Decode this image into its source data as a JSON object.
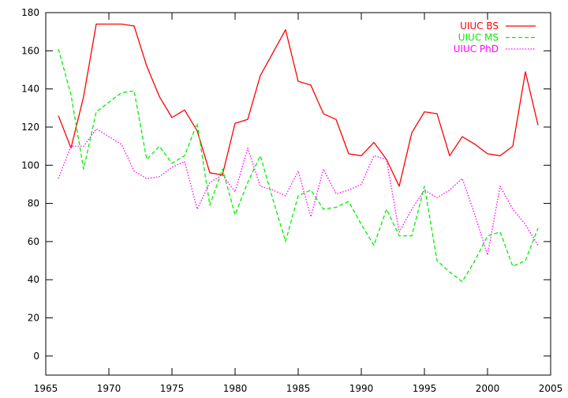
{
  "chart_data": {
    "type": "line",
    "title": "",
    "xlabel": "",
    "ylabel": "",
    "xlim": [
      1965,
      2005
    ],
    "ylim": [
      -10,
      180
    ],
    "xticks": [
      1965,
      1970,
      1975,
      1980,
      1985,
      1990,
      1995,
      2000,
      2005
    ],
    "yticks": [
      0,
      20,
      40,
      60,
      80,
      100,
      120,
      140,
      160,
      180
    ],
    "grid": false,
    "legend_position": "top-right",
    "x": [
      1966,
      1967,
      1968,
      1969,
      1970,
      1971,
      1972,
      1973,
      1974,
      1975,
      1976,
      1977,
      1978,
      1979,
      1980,
      1981,
      1982,
      1983,
      1984,
      1985,
      1986,
      1987,
      1988,
      1989,
      1990,
      1991,
      1992,
      1993,
      1994,
      1995,
      1996,
      1997,
      1998,
      1999,
      2000,
      2001,
      2002,
      2003,
      2004
    ],
    "series": [
      {
        "name": "UIUC BS",
        "color": "#ff0000",
        "dash": "solid",
        "values": [
          126,
          109,
          136,
          174,
          174,
          174,
          173,
          152,
          136,
          125,
          129,
          118,
          96,
          95,
          122,
          124,
          147,
          159,
          171,
          144,
          142,
          127,
          124,
          106,
          105,
          112,
          103,
          89,
          117,
          128,
          127,
          105,
          115,
          111,
          106,
          105,
          110,
          149,
          121
        ]
      },
      {
        "name": "UIUC MS",
        "color": "#00ee00",
        "dash": "dashed",
        "values": [
          161,
          137,
          98,
          128,
          133,
          138,
          139,
          103,
          110,
          101,
          105,
          122,
          79,
          98,
          74,
          91,
          105,
          82,
          60,
          84,
          87,
          77,
          78,
          81,
          69,
          58,
          77,
          63,
          63,
          89,
          50,
          44,
          39,
          50,
          63,
          65,
          47,
          50,
          67
        ]
      },
      {
        "name": "UIUC PhD",
        "color": "#ff00ff",
        "dash": "dotted",
        "values": [
          93,
          110,
          110,
          119,
          115,
          111,
          97,
          93,
          94,
          99,
          102,
          77,
          91,
          95,
          86,
          109,
          89,
          87,
          84,
          97,
          73,
          98,
          85,
          87,
          90,
          105,
          103,
          65,
          77,
          87,
          83,
          87,
          93,
          74,
          53,
          89,
          77,
          69,
          58
        ]
      }
    ]
  }
}
